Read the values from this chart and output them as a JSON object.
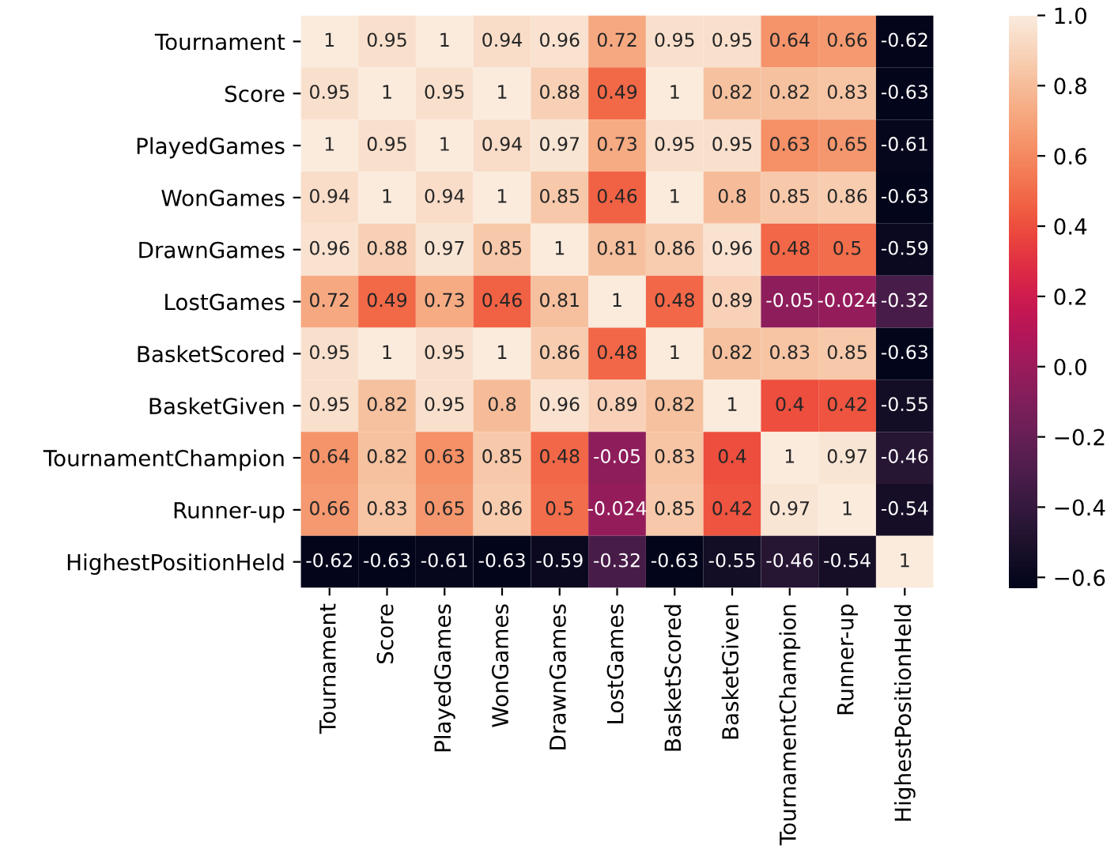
{
  "chart_data": {
    "type": "heatmap",
    "categories": [
      "Tournament",
      "Score",
      "PlayedGames",
      "WonGames",
      "DrawnGames",
      "LostGames",
      "BasketScored",
      "BasketGiven",
      "TournamentChampion",
      "Runner-up",
      "HighestPositionHeld"
    ],
    "y_categories": [
      "Tournament",
      "Score",
      "PlayedGames",
      "WonGames",
      "DrawnGames",
      "LostGames",
      "BasketScored",
      "BasketGiven",
      "TournamentChampion",
      "Runner-up",
      "HighestPositionHeld"
    ],
    "cells": [
      [
        1,
        0.95,
        1,
        0.94,
        0.96,
        0.72,
        0.95,
        0.95,
        0.64,
        0.66,
        -0.62
      ],
      [
        0.95,
        1,
        0.95,
        1,
        0.88,
        0.49,
        1,
        0.82,
        0.82,
        0.83,
        -0.63
      ],
      [
        1,
        0.95,
        1,
        0.94,
        0.97,
        0.73,
        0.95,
        0.95,
        0.63,
        0.65,
        -0.61
      ],
      [
        0.94,
        1,
        0.94,
        1,
        0.85,
        0.46,
        1,
        0.8,
        0.85,
        0.86,
        -0.63
      ],
      [
        0.96,
        0.88,
        0.97,
        0.85,
        1,
        0.81,
        0.86,
        0.96,
        0.48,
        0.5,
        -0.59
      ],
      [
        0.72,
        0.49,
        0.73,
        0.46,
        0.81,
        1,
        0.48,
        0.89,
        -0.05,
        -0.024,
        -0.32
      ],
      [
        0.95,
        1,
        0.95,
        1,
        0.86,
        0.48,
        1,
        0.82,
        0.83,
        0.85,
        -0.63
      ],
      [
        0.95,
        0.82,
        0.95,
        0.8,
        0.96,
        0.89,
        0.82,
        1,
        0.4,
        0.42,
        -0.55
      ],
      [
        0.64,
        0.82,
        0.63,
        0.85,
        0.48,
        -0.05,
        0.83,
        0.4,
        1,
        0.97,
        -0.46
      ],
      [
        0.66,
        0.83,
        0.65,
        0.86,
        0.5,
        -0.024,
        0.85,
        0.42,
        0.97,
        1,
        -0.54
      ],
      [
        -0.62,
        -0.63,
        -0.61,
        -0.63,
        -0.59,
        -0.32,
        -0.63,
        -0.55,
        -0.46,
        -0.54,
        1
      ]
    ],
    "data_labels": true,
    "clim": [
      -0.63,
      1
    ],
    "cticks": [
      {
        "value": -0.6,
        "label": "−0.6"
      },
      {
        "value": -0.4,
        "label": "−0.4"
      },
      {
        "value": -0.2,
        "label": "−0.2"
      },
      {
        "value": 0.0,
        "label": "0.0"
      },
      {
        "value": 0.2,
        "label": "0.2"
      },
      {
        "value": 0.4,
        "label": "0.4"
      },
      {
        "value": 0.6,
        "label": "0.6"
      },
      {
        "value": 0.8,
        "label": "0.8"
      },
      {
        "value": 1.0,
        "label": "1.0"
      }
    ]
  }
}
